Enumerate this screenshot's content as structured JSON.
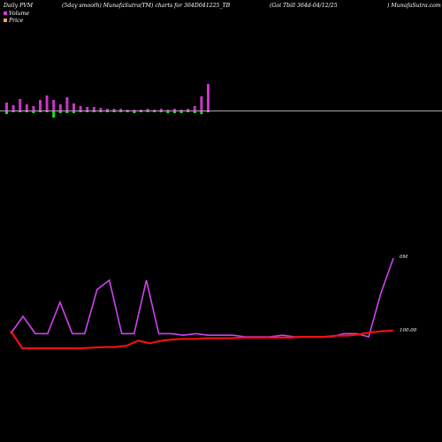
{
  "header": {
    "part1": "Daily PVM",
    "part2": "(5day smooth) MunafaSutra(TM) charts for 364D041225_TB",
    "part3": "(Goi  Tbill 364d-04/12/25",
    "part4": ") MunafaSutra.com"
  },
  "legend": {
    "items": [
      {
        "label": "Volume",
        "color": "#d040d0"
      },
      {
        "label": "Price",
        "color": "#f0a070"
      }
    ]
  },
  "colors": {
    "volume_up": "#cc33cc",
    "volume_down": "#22dd22",
    "volume_line": "#cc44ee",
    "price_line": "#ee1111",
    "baseline": "#aaaaaa"
  },
  "chart_data": [
    {
      "type": "bar",
      "title": "Daily PVM",
      "series": [
        {
          "name": "Volume",
          "values": [
            9,
            6,
            13,
            7,
            5,
            12,
            17,
            12,
            7,
            15,
            8,
            5,
            4,
            4,
            3,
            2,
            2,
            2,
            1,
            1,
            1,
            2,
            1,
            2,
            1,
            2,
            1,
            2,
            5,
            16,
            30
          ]
        },
        {
          "name": "Negative",
          "values": [
            -3,
            -1,
            -1,
            -1,
            -2,
            -1,
            -1,
            -7,
            -2,
            -2,
            -2,
            -1,
            -1,
            -1,
            -1,
            -1,
            -1,
            -1,
            -1,
            -2,
            -1,
            -1,
            -1,
            -1,
            -2,
            -2,
            -2,
            -1,
            -2,
            -3,
            -1
          ]
        }
      ]
    },
    {
      "type": "line",
      "ylabel_right": [
        "0M",
        "100.00"
      ],
      "series": [
        {
          "name": "Volume",
          "values": [
            0.14,
            0.25,
            0.14,
            0.14,
            0.34,
            0.14,
            0.14,
            0.42,
            0.48,
            0.14,
            0.14,
            0.48,
            0.14,
            0.14,
            0.13,
            0.14,
            0.13,
            0.13,
            0.13,
            0.12,
            0.12,
            0.12,
            0.13,
            0.12,
            0.12,
            0.12,
            0.12,
            0.14,
            0.14,
            0.12,
            0.4,
            0.62
          ]
        },
        {
          "name": "Price",
          "values": [
            100.0,
            99.72,
            99.72,
            99.72,
            99.72,
            99.72,
            99.72,
            99.73,
            99.74,
            99.74,
            99.76,
            99.84,
            99.8,
            99.84,
            99.86,
            99.87,
            99.87,
            99.88,
            99.88,
            99.88,
            99.89,
            99.89,
            99.89,
            99.89,
            99.89,
            99.9,
            99.9,
            99.9,
            99.92,
            99.92,
            99.94,
            99.97,
            99.99,
            100.0
          ]
        }
      ]
    }
  ]
}
